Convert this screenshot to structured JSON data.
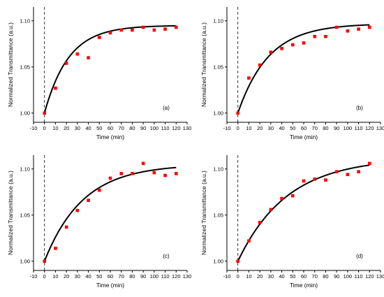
{
  "chart_data": [
    {
      "type": "scatter",
      "panel_label": "(a)",
      "xlabel": "Time (min)",
      "ylabel": "Normalized Transmittance (a.u.)",
      "xlim": [
        -10,
        130
      ],
      "ylim": [
        0.99,
        1.115
      ],
      "xticks": [
        -10,
        0,
        10,
        20,
        30,
        40,
        50,
        60,
        70,
        80,
        90,
        100,
        110,
        120,
        130
      ],
      "yticks": [
        "1.00",
        "1.05",
        "1.10"
      ],
      "x": [
        0,
        10,
        20,
        30,
        40,
        50,
        60,
        70,
        80,
        90,
        100,
        110,
        120
      ],
      "y": [
        1.0,
        1.027,
        1.054,
        1.064,
        1.06,
        1.082,
        1.087,
        1.09,
        1.09,
        1.093,
        1.09,
        1.091,
        1.093
      ],
      "fit": {
        "y0": 1.0,
        "amplitude": 0.095,
        "tau": 22
      }
    },
    {
      "type": "scatter",
      "panel_label": "(b)",
      "xlabel": "Time (min)",
      "ylabel": "Normalized Transmittance (a.u.)",
      "xlim": [
        -10,
        130
      ],
      "ylim": [
        0.99,
        1.115
      ],
      "xticks": [
        -10,
        0,
        10,
        20,
        30,
        40,
        50,
        60,
        70,
        80,
        90,
        100,
        110,
        120,
        130
      ],
      "yticks": [
        "1.00",
        "1.05",
        "1.10"
      ],
      "x": [
        0,
        10,
        20,
        30,
        40,
        50,
        60,
        70,
        80,
        90,
        100,
        110,
        120
      ],
      "y": [
        1.0,
        1.038,
        1.052,
        1.066,
        1.07,
        1.074,
        1.076,
        1.083,
        1.083,
        1.093,
        1.089,
        1.091,
        1.093
      ],
      "fit": {
        "y0": 1.0,
        "amplitude": 0.097,
        "tau": 28
      }
    },
    {
      "type": "scatter",
      "panel_label": "(c)",
      "xlabel": "Time (min)",
      "ylabel": "Normalized Transmittance (a.u.)",
      "xlim": [
        -10,
        130
      ],
      "ylim": [
        0.99,
        1.115
      ],
      "xticks": [
        -10,
        0,
        10,
        20,
        30,
        40,
        50,
        60,
        70,
        80,
        90,
        100,
        110,
        120,
        130
      ],
      "yticks": [
        "1.00",
        "1.05",
        "1.10"
      ],
      "x": [
        0,
        10,
        20,
        30,
        40,
        50,
        60,
        70,
        80,
        90,
        100,
        110,
        120
      ],
      "y": [
        1.0,
        1.014,
        1.037,
        1.055,
        1.066,
        1.077,
        1.09,
        1.095,
        1.095,
        1.106,
        1.096,
        1.093,
        1.095
      ],
      "fit": {
        "y0": 1.0,
        "amplitude": 0.105,
        "tau": 35
      }
    },
    {
      "type": "scatter",
      "panel_label": "(d)",
      "xlabel": "Time (min)",
      "ylabel": "Normalized Transmittance (a.u.)",
      "xlim": [
        -10,
        130
      ],
      "ylim": [
        0.99,
        1.115
      ],
      "xticks": [
        -10,
        0,
        10,
        20,
        30,
        40,
        50,
        60,
        70,
        80,
        90,
        100,
        110,
        120,
        130
      ],
      "yticks": [
        "1.00",
        "1.05",
        "1.10"
      ],
      "x": [
        0,
        10,
        20,
        30,
        40,
        50,
        60,
        70,
        80,
        90,
        100,
        110,
        120
      ],
      "y": [
        1.0,
        1.022,
        1.042,
        1.056,
        1.068,
        1.071,
        1.087,
        1.089,
        1.088,
        1.097,
        1.094,
        1.097,
        1.106
      ],
      "fit": {
        "y0": 1.0,
        "amplitude": 0.112,
        "tau": 45
      }
    }
  ],
  "colors": {
    "points": "#ff0000",
    "fit": "#000000",
    "axes": "#000000"
  }
}
